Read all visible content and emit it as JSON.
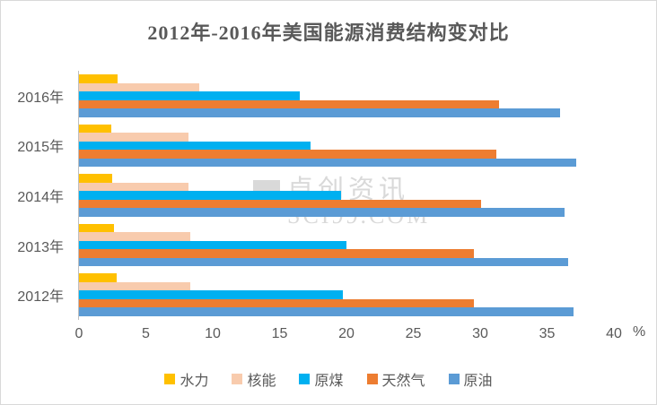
{
  "title": "2012年-2016年美国能源消费结构变对比",
  "watermark": {
    "line1": "卓创资讯",
    "line2": "SCI99.COM"
  },
  "colors": {
    "hydro": "#FFC000",
    "nuclear": "#F8CBAD",
    "coal": "#00B0F0",
    "natural_gas": "#ED7D31",
    "crude_oil": "#5B9BD5",
    "axis_text": "#595959",
    "axis_line": "#BFBFBF",
    "watermark": "#D9D9D9"
  },
  "chart_data": {
    "type": "bar",
    "orientation": "horizontal",
    "title": "2012年-2016年美国能源消费结构变对比",
    "categories": [
      "2016年",
      "2015年",
      "2014年",
      "2013年",
      "2012年"
    ],
    "series": [
      {
        "name": "水力",
        "color": "#FFC000",
        "values": [
          2.9,
          2.4,
          2.5,
          2.6,
          2.8
        ]
      },
      {
        "name": "核能",
        "color": "#F8CBAD",
        "values": [
          9.0,
          8.2,
          8.2,
          8.3,
          8.3
        ]
      },
      {
        "name": "原煤",
        "color": "#00B0F0",
        "values": [
          16.5,
          17.3,
          19.6,
          20.0,
          19.7
        ]
      },
      {
        "name": "天然气",
        "color": "#ED7D31",
        "values": [
          31.4,
          31.2,
          30.1,
          29.5,
          29.5
        ]
      },
      {
        "name": "原油",
        "color": "#5B9BD5",
        "values": [
          36.0,
          37.2,
          36.3,
          36.6,
          37.0
        ]
      }
    ],
    "x_ticks": [
      0,
      5,
      10,
      15,
      20,
      25,
      30,
      35,
      40
    ],
    "xlim": [
      0,
      40
    ],
    "xlabel_unit": "%",
    "ylabel": "",
    "grid": false,
    "legend_position": "bottom"
  }
}
